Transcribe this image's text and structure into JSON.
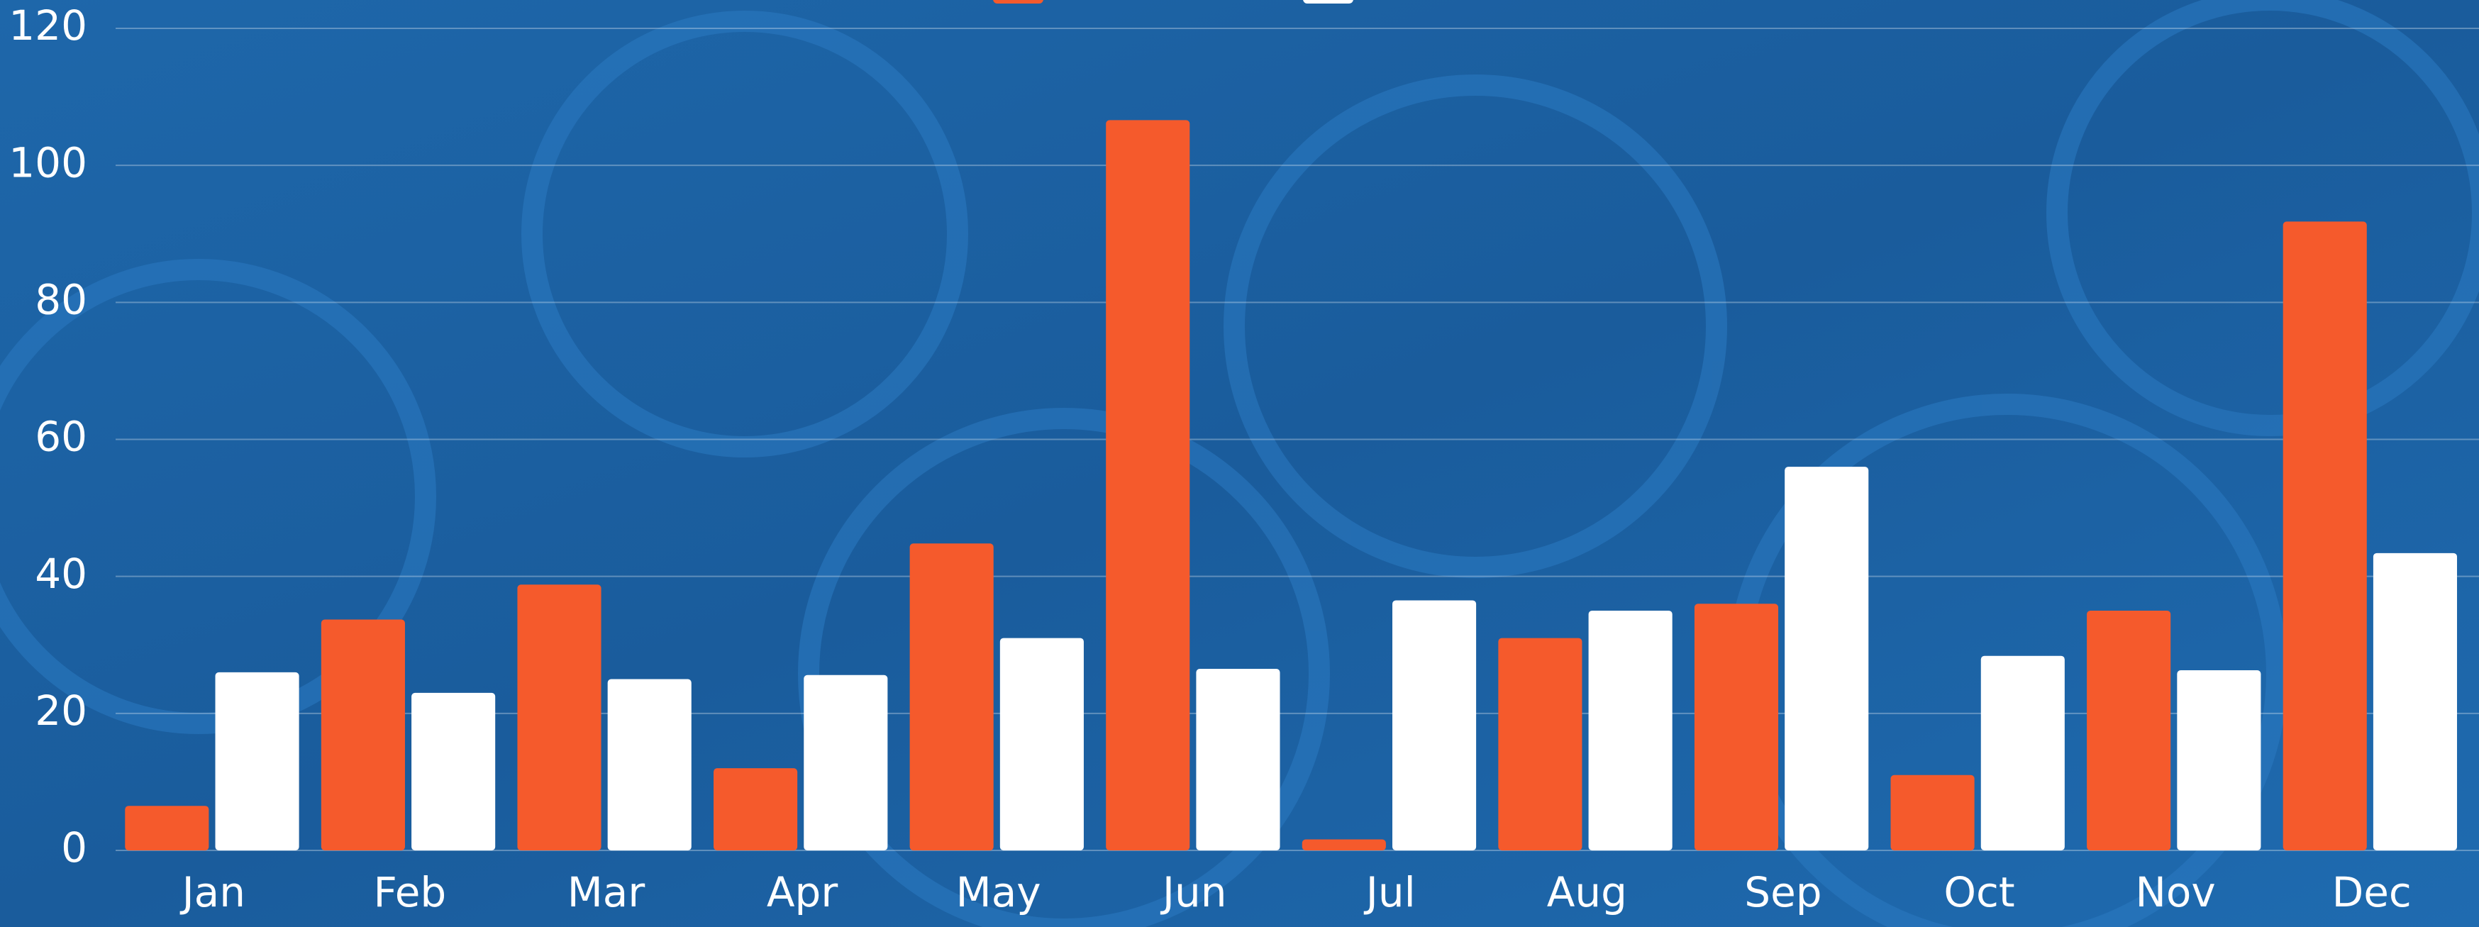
{
  "chart_data": {
    "type": "bar",
    "categories": [
      "Jan",
      "Feb",
      "Mar",
      "Apr",
      "May",
      "Jun",
      "Jul",
      "Aug",
      "Sep",
      "Oct",
      "Nov",
      "Dec"
    ],
    "series": [
      {
        "color": "#f55a2c",
        "values": [
          6.5,
          33.7,
          38.8,
          12,
          44.8,
          106.6,
          1.6,
          31,
          36,
          11,
          35,
          91.8
        ]
      },
      {
        "color": "#ffffff",
        "values": [
          26,
          23,
          25,
          25.6,
          31,
          26.5,
          36.5,
          35,
          56,
          28.4,
          26.3,
          43.4
        ]
      }
    ],
    "ylim": [
      0,
      120
    ],
    "yticks": [
      0,
      20,
      40,
      60,
      80,
      100,
      120
    ],
    "grid": true
  }
}
